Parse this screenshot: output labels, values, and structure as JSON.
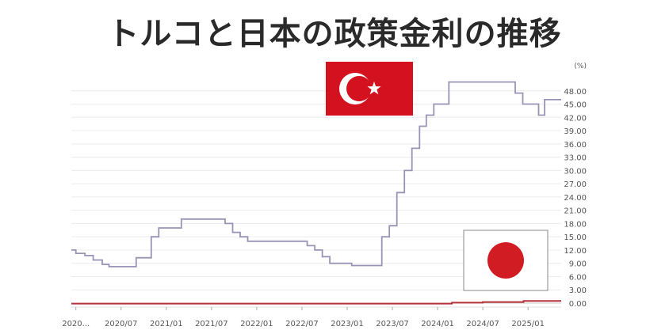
{
  "title": "トルコと日本の政策金利の推移",
  "chart_data": {
    "type": "line",
    "title": "トルコと日本の政策金利の推移",
    "y_unit": "(%)",
    "ylim": [
      0,
      51
    ],
    "y_ticks": [
      "0.00",
      "3.00",
      "6.00",
      "9.00",
      "12.00",
      "15.00",
      "18.00",
      "21.00",
      "24.00",
      "27.00",
      "30.00",
      "33.00",
      "36.00",
      "39.00",
      "42.00",
      "45.00",
      "48.00"
    ],
    "x_ticks": [
      "2020...",
      "2020/07",
      "2021/01",
      "2021/07",
      "2022/01",
      "2022/07",
      "2023/01",
      "2023/07",
      "2024/01",
      "2024/07",
      "2025/01"
    ],
    "xlim": [
      0,
      65
    ],
    "grid": true,
    "series": [
      {
        "color": "#9b93b5",
        "step": true,
        "points": [
          [
            0,
            12.0
          ],
          [
            0.6,
            11.25
          ],
          [
            1.8,
            10.75
          ],
          [
            2.9,
            9.75
          ],
          [
            4.1,
            8.75
          ],
          [
            5.0,
            8.25
          ],
          [
            8.6,
            10.25
          ],
          [
            10.6,
            15.0
          ],
          [
            11.6,
            17.0
          ],
          [
            14.6,
            19.0
          ],
          [
            20.4,
            18.0
          ],
          [
            21.4,
            16.0
          ],
          [
            22.4,
            15.0
          ],
          [
            23.4,
            14.0
          ],
          [
            31.3,
            13.0
          ],
          [
            32.3,
            12.0
          ],
          [
            33.3,
            10.5
          ],
          [
            34.3,
            9.0
          ],
          [
            37.2,
            8.5
          ],
          [
            41.2,
            15.0
          ],
          [
            42.2,
            17.5
          ],
          [
            43.2,
            25.0
          ],
          [
            44.2,
            30.0
          ],
          [
            45.2,
            35.0
          ],
          [
            46.2,
            40.0
          ],
          [
            47.1,
            42.5
          ],
          [
            48.1,
            45.0
          ],
          [
            50.1,
            50.0
          ],
          [
            58.9,
            47.5
          ],
          [
            59.9,
            45.0
          ],
          [
            62.0,
            42.5
          ],
          [
            62.8,
            46.0
          ],
          [
            65.0,
            46.0
          ]
        ]
      },
      {
        "color": "#b5323a",
        "step": true,
        "points": [
          [
            0,
            -0.1
          ],
          [
            50.5,
            0.1
          ],
          [
            54.6,
            0.25
          ],
          [
            60.0,
            0.5
          ],
          [
            65.0,
            0.5
          ]
        ]
      }
    ]
  },
  "flags": {
    "turkey": {
      "bg": "#d4121f",
      "fg": "#ffffff"
    },
    "japan": {
      "bg": "#ffffff",
      "fg": "#d21c24",
      "border": "#888888"
    }
  }
}
